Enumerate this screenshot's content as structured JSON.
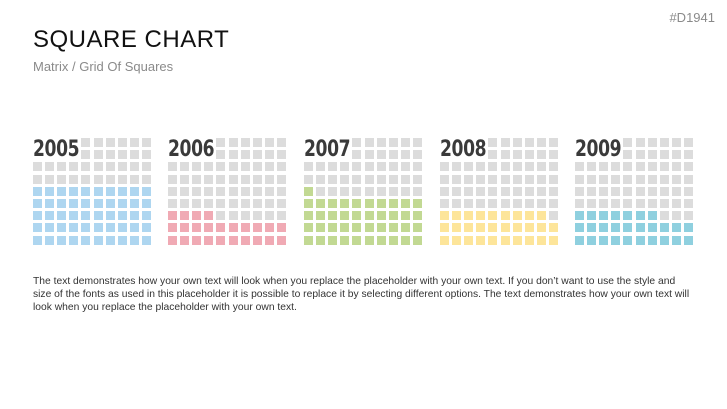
{
  "slide_id": "#D1941",
  "title": "SQUARE CHART",
  "subtitle": "Matrix / Grid Of Squares",
  "body_text": "The text demonstrates how your own text will look when you replace the placeholder with your own text. If you don’t want to use the style and size of the fonts as used in this placeholder it is possible to replace it by selecting different options. The text demonstrates how your own text will look when you replace the placeholder with your own text.",
  "chart_data": {
    "type": "heatmap",
    "title": "Square Chart",
    "grid": {
      "columns": 10,
      "rows": 9,
      "label_cells_columns": 4,
      "label_cells_rows": 2,
      "total_squares": 82
    },
    "empty_color": "#dcdcdc",
    "series": [
      {
        "name": "2005",
        "filled": 50,
        "color": "#aed6f0"
      },
      {
        "name": "2006",
        "filled": 24,
        "color": "#f0aab4"
      },
      {
        "name": "2007",
        "filled": 41,
        "color": "#c2d993"
      },
      {
        "name": "2008",
        "filled": 29,
        "color": "#fde59a"
      },
      {
        "name": "2009",
        "filled": 27,
        "color": "#8fd0df"
      }
    ]
  }
}
